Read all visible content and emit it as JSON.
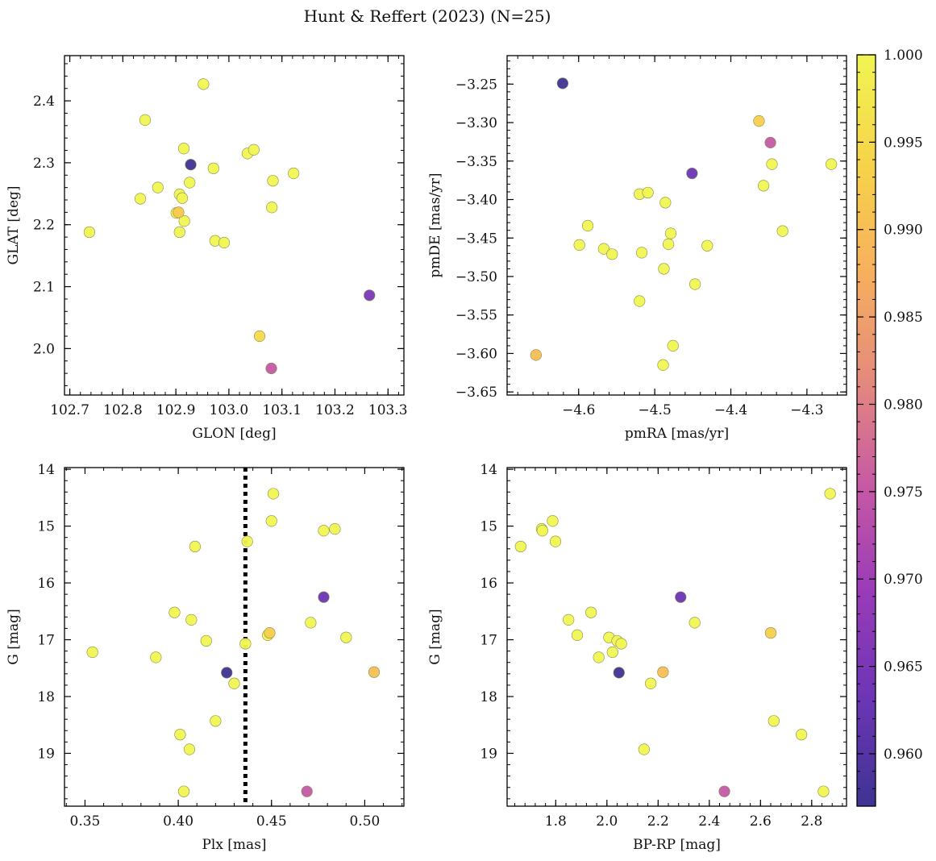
{
  "figure": {
    "title": "Hunt & Reffert (2023) (N=25)"
  },
  "colorbar": {
    "min": 0.957,
    "max": 1.0,
    "ticks": [
      "0.960",
      "0.965",
      "0.970",
      "0.975",
      "0.980",
      "0.985",
      "0.990",
      "0.995",
      "1.000"
    ],
    "tick_values": [
      0.96,
      0.965,
      0.97,
      0.975,
      0.98,
      0.985,
      0.99,
      0.995,
      1.0
    ],
    "colormap": "plasma",
    "stops": [
      "#3e3492",
      "#6c35b5",
      "#9a3bb8",
      "#c75aa4",
      "#e58b7c",
      "#f7b15c",
      "#f7d44a",
      "#f0f552"
    ]
  },
  "chart_data": [
    {
      "type": "scatter",
      "xlabel": "GLON [deg]",
      "ylabel": "GLAT [deg]",
      "xlim": [
        102.69,
        103.33
      ],
      "ylim": [
        1.925,
        2.473
      ],
      "invert_y": false,
      "xticks": [
        102.7,
        102.8,
        102.9,
        103.0,
        103.1,
        103.2,
        103.3
      ],
      "xtick_labels": [
        "102.7",
        "102.8",
        "102.9",
        "103.0",
        "103.1",
        "103.2",
        "103.3"
      ],
      "yticks": [
        2.0,
        2.1,
        2.2,
        2.3,
        2.4
      ],
      "ytick_labels": [
        "2.0",
        "2.1",
        "2.2",
        "2.3",
        "2.4"
      ],
      "vline": null,
      "points": [
        {
          "x": 102.737,
          "y": 2.188,
          "c": 1.0
        },
        {
          "x": 102.833,
          "y": 2.242,
          "c": 1.0
        },
        {
          "x": 102.842,
          "y": 2.369,
          "c": 1.0
        },
        {
          "x": 102.866,
          "y": 2.26,
          "c": 1.0
        },
        {
          "x": 102.905,
          "y": 2.22,
          "c": 0.992
        },
        {
          "x": 102.907,
          "y": 2.249,
          "c": 1.0
        },
        {
          "x": 102.907,
          "y": 2.188,
          "c": 1.0
        },
        {
          "x": 102.912,
          "y": 2.243,
          "c": 1.0
        },
        {
          "x": 102.915,
          "y": 2.323,
          "c": 1.0
        },
        {
          "x": 102.916,
          "y": 2.206,
          "c": 1.0
        },
        {
          "x": 102.926,
          "y": 2.268,
          "c": 1.0
        },
        {
          "x": 102.952,
          "y": 2.427,
          "c": 1.0
        },
        {
          "x": 102.971,
          "y": 2.291,
          "c": 1.0
        },
        {
          "x": 102.974,
          "y": 2.174,
          "c": 1.0
        },
        {
          "x": 102.991,
          "y": 2.171,
          "c": 1.0
        },
        {
          "x": 103.035,
          "y": 2.315,
          "c": 1.0
        },
        {
          "x": 103.047,
          "y": 2.321,
          "c": 1.0
        },
        {
          "x": 103.081,
          "y": 2.228,
          "c": 1.0
        },
        {
          "x": 103.083,
          "y": 2.271,
          "c": 1.0
        },
        {
          "x": 103.122,
          "y": 2.283,
          "c": 1.0
        },
        {
          "x": 103.058,
          "y": 2.02,
          "c": 0.995
        },
        {
          "x": 103.08,
          "y": 1.968,
          "c": 0.975
        },
        {
          "x": 102.928,
          "y": 2.297,
          "c": 0.957
        },
        {
          "x": 103.265,
          "y": 2.086,
          "c": 0.965
        },
        {
          "x": 102.901,
          "y": 2.219,
          "c": 1.0
        }
      ]
    },
    {
      "type": "scatter",
      "xlabel": "pmRA [mas/yr]",
      "ylabel": "pmDE [mas/yr]",
      "xlim": [
        -4.694,
        -4.248
      ],
      "ylim": [
        -3.654,
        -3.213
      ],
      "invert_y": false,
      "xticks": [
        -4.6,
        -4.5,
        -4.4,
        -4.3
      ],
      "xtick_labels": [
        "−4.6",
        "−4.5",
        "−4.4",
        "−4.3"
      ],
      "yticks": [
        -3.65,
        -3.6,
        -3.55,
        -3.5,
        -3.45,
        -3.4,
        -3.35,
        -3.3,
        -3.25
      ],
      "ytick_labels": [
        "−3.65",
        "−3.60",
        "−3.55",
        "−3.50",
        "−3.45",
        "−3.40",
        "−3.35",
        "−3.30",
        "−3.25"
      ],
      "vline": null,
      "points": [
        {
          "x": -4.621,
          "y": -3.249,
          "c": 0.957
        },
        {
          "x": -4.363,
          "y": -3.298,
          "c": 0.993
        },
        {
          "x": -4.348,
          "y": -3.326,
          "c": 0.975
        },
        {
          "x": -4.346,
          "y": -3.354,
          "c": 1.0
        },
        {
          "x": -4.268,
          "y": -3.354,
          "c": 1.0
        },
        {
          "x": -4.451,
          "y": -3.366,
          "c": 0.963
        },
        {
          "x": -4.357,
          "y": -3.382,
          "c": 1.0
        },
        {
          "x": -4.52,
          "y": -3.393,
          "c": 1.0
        },
        {
          "x": -4.509,
          "y": -3.391,
          "c": 1.0
        },
        {
          "x": -4.486,
          "y": -3.404,
          "c": 1.0
        },
        {
          "x": -4.588,
          "y": -3.434,
          "c": 1.0
        },
        {
          "x": -4.332,
          "y": -3.441,
          "c": 1.0
        },
        {
          "x": -4.479,
          "y": -3.444,
          "c": 1.0
        },
        {
          "x": -4.599,
          "y": -3.459,
          "c": 1.0
        },
        {
          "x": -4.482,
          "y": -3.458,
          "c": 1.0
        },
        {
          "x": -4.431,
          "y": -3.46,
          "c": 1.0
        },
        {
          "x": -4.567,
          "y": -3.464,
          "c": 1.0
        },
        {
          "x": -4.556,
          "y": -3.471,
          "c": 1.0
        },
        {
          "x": -4.517,
          "y": -3.469,
          "c": 1.0
        },
        {
          "x": -4.488,
          "y": -3.49,
          "c": 1.0
        },
        {
          "x": -4.447,
          "y": -3.51,
          "c": 1.0
        },
        {
          "x": -4.52,
          "y": -3.532,
          "c": 1.0
        },
        {
          "x": -4.476,
          "y": -3.59,
          "c": 1.0
        },
        {
          "x": -4.656,
          "y": -3.602,
          "c": 0.99
        },
        {
          "x": -4.489,
          "y": -3.615,
          "c": 1.0
        }
      ]
    },
    {
      "type": "scatter",
      "xlabel": "Plx [mas]",
      "ylabel": "G [mag]",
      "xlim": [
        0.339,
        0.521
      ],
      "ylim": [
        19.93,
        13.97
      ],
      "invert_y": true,
      "xticks": [
        0.35,
        0.4,
        0.45,
        0.5
      ],
      "xtick_labels": [
        "0.35",
        "0.40",
        "0.45",
        "0.50"
      ],
      "yticks": [
        14,
        15,
        16,
        17,
        18,
        19
      ],
      "ytick_labels": [
        "14",
        "15",
        "16",
        "17",
        "18",
        "19"
      ],
      "vline": 0.436,
      "points": [
        {
          "x": 0.451,
          "y": 14.43,
          "c": 1.0
        },
        {
          "x": 0.45,
          "y": 14.91,
          "c": 1.0
        },
        {
          "x": 0.484,
          "y": 15.05,
          "c": 1.0
        },
        {
          "x": 0.478,
          "y": 15.08,
          "c": 1.0
        },
        {
          "x": 0.437,
          "y": 15.27,
          "c": 1.0
        },
        {
          "x": 0.409,
          "y": 15.36,
          "c": 1.0
        },
        {
          "x": 0.478,
          "y": 16.25,
          "c": 0.963
        },
        {
          "x": 0.398,
          "y": 16.52,
          "c": 1.0
        },
        {
          "x": 0.407,
          "y": 16.65,
          "c": 1.0
        },
        {
          "x": 0.471,
          "y": 16.7,
          "c": 1.0
        },
        {
          "x": 0.449,
          "y": 16.88,
          "c": 0.993
        },
        {
          "x": 0.448,
          "y": 16.92,
          "c": 1.0
        },
        {
          "x": 0.49,
          "y": 16.96,
          "c": 1.0
        },
        {
          "x": 0.415,
          "y": 17.02,
          "c": 1.0
        },
        {
          "x": 0.436,
          "y": 17.07,
          "c": 1.0
        },
        {
          "x": 0.354,
          "y": 17.22,
          "c": 1.0
        },
        {
          "x": 0.388,
          "y": 17.31,
          "c": 1.0
        },
        {
          "x": 0.426,
          "y": 17.58,
          "c": 0.957
        },
        {
          "x": 0.505,
          "y": 17.57,
          "c": 0.99
        },
        {
          "x": 0.43,
          "y": 17.77,
          "c": 1.0
        },
        {
          "x": 0.42,
          "y": 18.43,
          "c": 1.0
        },
        {
          "x": 0.401,
          "y": 18.67,
          "c": 1.0
        },
        {
          "x": 0.406,
          "y": 18.93,
          "c": 1.0
        },
        {
          "x": 0.403,
          "y": 19.67,
          "c": 1.0
        },
        {
          "x": 0.469,
          "y": 19.67,
          "c": 0.975
        }
      ]
    },
    {
      "type": "scatter",
      "xlabel": "BP-RP [mag]",
      "ylabel": "G [mag]",
      "xlim": [
        1.61,
        2.936
      ],
      "ylim": [
        19.93,
        13.97
      ],
      "invert_y": true,
      "xticks": [
        1.8,
        2.0,
        2.2,
        2.4,
        2.6,
        2.8
      ],
      "xtick_labels": [
        "1.8",
        "2.0",
        "2.2",
        "2.4",
        "2.6",
        "2.8"
      ],
      "yticks": [
        14,
        15,
        16,
        17,
        18,
        19
      ],
      "ytick_labels": [
        "14",
        "15",
        "16",
        "17",
        "18",
        "19"
      ],
      "vline": null,
      "points": [
        {
          "x": 2.872,
          "y": 14.43,
          "c": 1.0
        },
        {
          "x": 1.788,
          "y": 14.91,
          "c": 1.0
        },
        {
          "x": 1.745,
          "y": 15.05,
          "c": 1.0
        },
        {
          "x": 1.748,
          "y": 15.08,
          "c": 1.0
        },
        {
          "x": 1.799,
          "y": 15.27,
          "c": 1.0
        },
        {
          "x": 1.663,
          "y": 15.36,
          "c": 1.0
        },
        {
          "x": 2.288,
          "y": 16.25,
          "c": 0.963
        },
        {
          "x": 1.938,
          "y": 16.52,
          "c": 1.0
        },
        {
          "x": 1.85,
          "y": 16.65,
          "c": 1.0
        },
        {
          "x": 2.343,
          "y": 16.7,
          "c": 1.0
        },
        {
          "x": 2.64,
          "y": 16.88,
          "c": 0.993
        },
        {
          "x": 1.884,
          "y": 16.92,
          "c": 1.0
        },
        {
          "x": 2.008,
          "y": 16.96,
          "c": 1.0
        },
        {
          "x": 2.04,
          "y": 17.02,
          "c": 1.0
        },
        {
          "x": 2.056,
          "y": 17.07,
          "c": 1.0
        },
        {
          "x": 2.022,
          "y": 17.22,
          "c": 1.0
        },
        {
          "x": 1.968,
          "y": 17.31,
          "c": 1.0
        },
        {
          "x": 2.047,
          "y": 17.58,
          "c": 0.957
        },
        {
          "x": 2.219,
          "y": 17.57,
          "c": 0.99
        },
        {
          "x": 2.171,
          "y": 17.77,
          "c": 1.0
        },
        {
          "x": 2.652,
          "y": 18.43,
          "c": 1.0
        },
        {
          "x": 2.76,
          "y": 18.67,
          "c": 1.0
        },
        {
          "x": 2.145,
          "y": 18.93,
          "c": 1.0
        },
        {
          "x": 2.846,
          "y": 19.67,
          "c": 1.0
        },
        {
          "x": 2.459,
          "y": 19.67,
          "c": 0.975
        }
      ]
    }
  ]
}
